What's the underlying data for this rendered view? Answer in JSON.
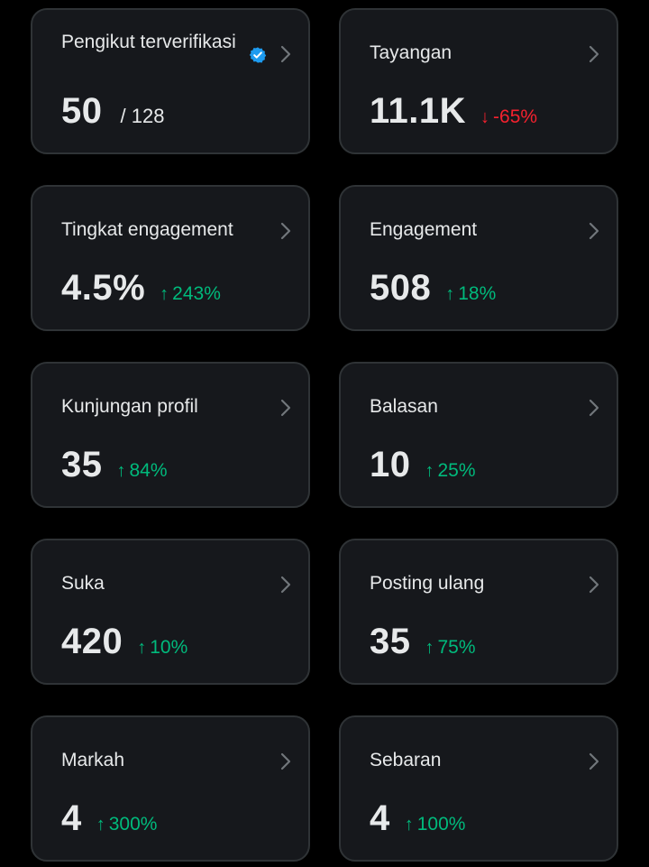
{
  "cards": [
    {
      "label": "Pengikut terverifikasi",
      "value": "50",
      "sub": "/ 128"
    },
    {
      "label": "Tayangan",
      "value": "11.1K",
      "change": "-65%",
      "direction": "down"
    },
    {
      "label": "Tingkat engagement",
      "value": "4.5%",
      "change": "243%",
      "direction": "up"
    },
    {
      "label": "Engagement",
      "value": "508",
      "change": "18%",
      "direction": "up"
    },
    {
      "label": "Kunjungan profil",
      "value": "35",
      "change": "84%",
      "direction": "up"
    },
    {
      "label": "Balasan",
      "value": "10",
      "change": "25%",
      "direction": "up"
    },
    {
      "label": "Suka",
      "value": "420",
      "change": "10%",
      "direction": "up"
    },
    {
      "label": "Posting ulang",
      "value": "35",
      "change": "75%",
      "direction": "up"
    },
    {
      "label": "Markah",
      "value": "4",
      "change": "300%",
      "direction": "up"
    },
    {
      "label": "Sebaran",
      "value": "4",
      "change": "100%",
      "direction": "up"
    }
  ],
  "icons": {
    "verified": "verified-badge-icon",
    "chevron": "chevron-right-icon",
    "arrow_up": "arrow-up-icon",
    "arrow_down": "arrow-down-icon"
  },
  "colors": {
    "background": "#000000",
    "card": "#16181c",
    "border": "#2f3336",
    "text": "#e7e9ea",
    "up": "#00ba7c",
    "down": "#f4212e",
    "verified": "#1d9bf0"
  }
}
